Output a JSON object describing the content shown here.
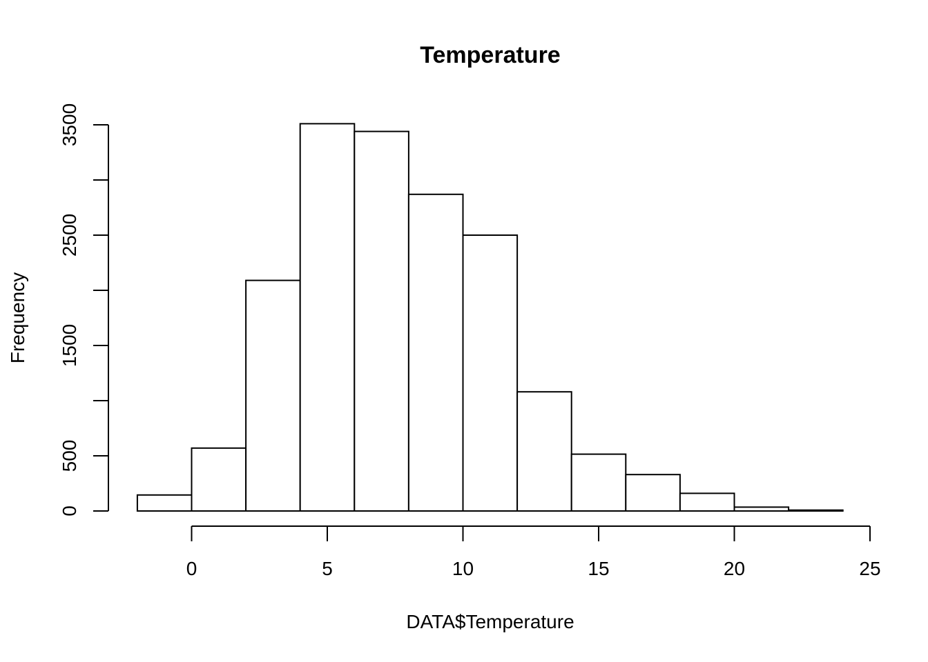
{
  "chart_data": {
    "type": "bar",
    "subtype": "histogram",
    "title": "Temperature",
    "xlabel": "DATA$Temperature",
    "ylabel": "Frequency",
    "bins": [
      {
        "from": -2,
        "to": 0,
        "count": 145
      },
      {
        "from": 0,
        "to": 2,
        "count": 570
      },
      {
        "from": 2,
        "to": 4,
        "count": 2090
      },
      {
        "from": 4,
        "to": 6,
        "count": 3510
      },
      {
        "from": 6,
        "to": 8,
        "count": 3440
      },
      {
        "from": 8,
        "to": 10,
        "count": 2870
      },
      {
        "from": 10,
        "to": 12,
        "count": 2500
      },
      {
        "from": 12,
        "to": 14,
        "count": 1080
      },
      {
        "from": 14,
        "to": 16,
        "count": 515
      },
      {
        "from": 16,
        "to": 18,
        "count": 330
      },
      {
        "from": 18,
        "to": 20,
        "count": 160
      },
      {
        "from": 20,
        "to": 22,
        "count": 35
      },
      {
        "from": 22,
        "to": 24,
        "count": 8
      }
    ],
    "x_ticks": [
      0,
      5,
      10,
      15,
      20,
      25
    ],
    "x_tick_labels": [
      "0",
      "5",
      "10",
      "15",
      "20",
      "25"
    ],
    "y_ticks": [
      0,
      500,
      1000,
      1500,
      2000,
      2500,
      3000,
      3500
    ],
    "y_tick_labels": [
      "0",
      "500",
      "",
      "1500",
      "",
      "2500",
      "",
      "3500"
    ],
    "xlim": [
      0,
      25
    ],
    "ylim": [
      0,
      3500
    ],
    "grid": false,
    "bar_fill": "#ffffff",
    "bar_stroke": "#000000"
  }
}
